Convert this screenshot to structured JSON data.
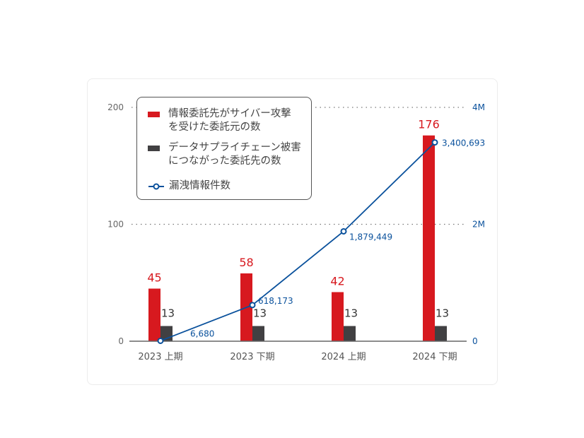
{
  "chart_data": {
    "type": "bar+line",
    "categories": [
      "2023 上期",
      "2023 下期",
      "2024 上期",
      "2024 下期"
    ],
    "series": [
      {
        "name": "情報委託先がサイバー攻撃\nを受けた委託元の数",
        "type": "bar",
        "axis": "left",
        "color": "#d7191f",
        "values": [
          45,
          58,
          42,
          176
        ],
        "labels": [
          "45",
          "58",
          "42",
          "176"
        ]
      },
      {
        "name": "データサプライチェーン被害\nにつながった委託先の数",
        "type": "bar",
        "axis": "left",
        "color": "#414042",
        "values": [
          13,
          13,
          13,
          13
        ],
        "labels": [
          "13",
          "13",
          "13",
          "13"
        ]
      },
      {
        "name": "漏洩情報件数",
        "type": "line",
        "axis": "right",
        "color": "#0a519c",
        "values": [
          6680,
          618173,
          1879449,
          3400693
        ],
        "labels": [
          "6,680",
          "618,173",
          "1,879,449",
          "3,400,693"
        ]
      }
    ],
    "left_axis": {
      "ylim": [
        0,
        200
      ],
      "ticks": [
        0,
        100,
        200
      ],
      "tick_labels": [
        "0",
        "100",
        "200"
      ]
    },
    "right_axis": {
      "ylim": [
        0,
        4000000
      ],
      "ticks": [
        0,
        2000000,
        4000000
      ],
      "tick_labels": [
        "0",
        "2M",
        "4M"
      ],
      "color": "#0a519c"
    },
    "grid": "dotted horizontal at 100 and 200",
    "legend": "top-left"
  }
}
